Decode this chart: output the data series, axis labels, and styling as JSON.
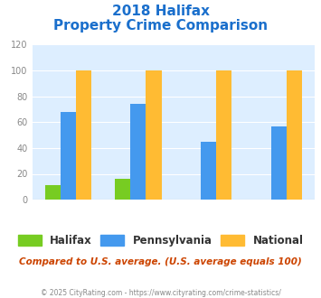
{
  "title_line1": "2018 Halifax",
  "title_line2": "Property Crime Comparison",
  "title_color": "#1a6fcc",
  "halifax_values": [
    11,
    16,
    0,
    0
  ],
  "pennsylvania_values": [
    68,
    74,
    45,
    57
  ],
  "national_values": [
    100,
    100,
    100,
    100
  ],
  "halifax_color": "#77cc22",
  "pennsylvania_color": "#4499ee",
  "national_color": "#ffbb33",
  "ylim": [
    0,
    120
  ],
  "yticks": [
    0,
    20,
    40,
    60,
    80,
    100,
    120
  ],
  "legend_labels": [
    "Halifax",
    "Pennsylvania",
    "National"
  ],
  "legend_text_color": "#333333",
  "subtitle": "Compared to U.S. average. (U.S. average equals 100)",
  "subtitle_color": "#cc4400",
  "footer": "© 2025 CityRating.com - https://www.cityrating.com/crime-statistics/",
  "footer_color": "#888888",
  "bg_color": "#ddeeff",
  "xtick_color": "#aa88bb",
  "ytick_color": "#888888"
}
